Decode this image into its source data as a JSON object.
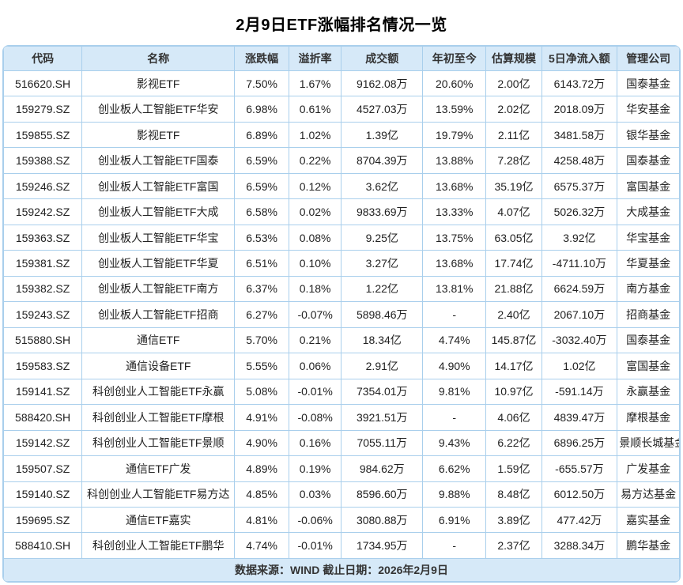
{
  "title": "2月9日ETF涨幅排名情况一览",
  "colors": {
    "header_bg": "#d6e9f8",
    "border": "#a9cfec",
    "title_text": "#000000",
    "body_text": "#222222"
  },
  "chart_data": {
    "type": "table",
    "title": "2月9日ETF涨幅排名情况一览",
    "columns": [
      "代码",
      "名称",
      "涨跌幅",
      "溢折率",
      "成交额",
      "年初至今",
      "估算规模",
      "5日净流入额",
      "管理公司"
    ],
    "column_keys": [
      "code",
      "name",
      "change",
      "premium_discount",
      "turnover",
      "ytd",
      "estimated_scale",
      "net_inflow_5d",
      "manager"
    ],
    "rows": [
      [
        "516620.SH",
        "影视ETF",
        "7.50%",
        "1.67%",
        "9162.08万",
        "20.60%",
        "2.00亿",
        "6143.72万",
        "国泰基金"
      ],
      [
        "159279.SZ",
        "创业板人工智能ETF华安",
        "6.98%",
        "0.61%",
        "4527.03万",
        "13.59%",
        "2.02亿",
        "2018.09万",
        "华安基金"
      ],
      [
        "159855.SZ",
        "影视ETF",
        "6.89%",
        "1.02%",
        "1.39亿",
        "19.79%",
        "2.11亿",
        "3481.58万",
        "银华基金"
      ],
      [
        "159388.SZ",
        "创业板人工智能ETF国泰",
        "6.59%",
        "0.22%",
        "8704.39万",
        "13.88%",
        "7.28亿",
        "4258.48万",
        "国泰基金"
      ],
      [
        "159246.SZ",
        "创业板人工智能ETF富国",
        "6.59%",
        "0.12%",
        "3.62亿",
        "13.68%",
        "35.19亿",
        "6575.37万",
        "富国基金"
      ],
      [
        "159242.SZ",
        "创业板人工智能ETF大成",
        "6.58%",
        "0.02%",
        "9833.69万",
        "13.33%",
        "4.07亿",
        "5026.32万",
        "大成基金"
      ],
      [
        "159363.SZ",
        "创业板人工智能ETF华宝",
        "6.53%",
        "0.08%",
        "9.25亿",
        "13.75%",
        "63.05亿",
        "3.92亿",
        "华宝基金"
      ],
      [
        "159381.SZ",
        "创业板人工智能ETF华夏",
        "6.51%",
        "0.10%",
        "3.27亿",
        "13.68%",
        "17.74亿",
        "-4711.10万",
        "华夏基金"
      ],
      [
        "159382.SZ",
        "创业板人工智能ETF南方",
        "6.37%",
        "0.18%",
        "1.22亿",
        "13.81%",
        "21.88亿",
        "6624.59万",
        "南方基金"
      ],
      [
        "159243.SZ",
        "创业板人工智能ETF招商",
        "6.27%",
        "-0.07%",
        "5898.46万",
        "-",
        "2.40亿",
        "2067.10万",
        "招商基金"
      ],
      [
        "515880.SH",
        "通信ETF",
        "5.70%",
        "0.21%",
        "18.34亿",
        "4.74%",
        "145.87亿",
        "-3032.40万",
        "国泰基金"
      ],
      [
        "159583.SZ",
        "通信设备ETF",
        "5.55%",
        "0.06%",
        "2.91亿",
        "4.90%",
        "14.17亿",
        "1.02亿",
        "富国基金"
      ],
      [
        "159141.SZ",
        "科创创业人工智能ETF永赢",
        "5.08%",
        "-0.01%",
        "7354.01万",
        "9.81%",
        "10.97亿",
        "-591.14万",
        "永赢基金"
      ],
      [
        "588420.SH",
        "科创创业人工智能ETF摩根",
        "4.91%",
        "-0.08%",
        "3921.51万",
        "-",
        "4.06亿",
        "4839.47万",
        "摩根基金"
      ],
      [
        "159142.SZ",
        "科创创业人工智能ETF景顺",
        "4.90%",
        "0.16%",
        "7055.11万",
        "9.43%",
        "6.22亿",
        "6896.25万",
        "景顺长城基金"
      ],
      [
        "159507.SZ",
        "通信ETF广发",
        "4.89%",
        "0.19%",
        "984.62万",
        "6.62%",
        "1.59亿",
        "-655.57万",
        "广发基金"
      ],
      [
        "159140.SZ",
        "科创创业人工智能ETF易方达",
        "4.85%",
        "0.03%",
        "8596.60万",
        "9.88%",
        "8.48亿",
        "6012.50万",
        "易方达基金"
      ],
      [
        "159695.SZ",
        "通信ETF嘉实",
        "4.81%",
        "-0.06%",
        "3080.88万",
        "6.91%",
        "3.89亿",
        "477.42万",
        "嘉实基金"
      ],
      [
        "588410.SH",
        "科创创业人工智能ETF鹏华",
        "4.74%",
        "-0.01%",
        "1734.95万",
        "-",
        "2.37亿",
        "3288.34万",
        "鹏华基金"
      ]
    ],
    "source_note": "数据来源：WIND 截止日期：2026年2月9日"
  }
}
